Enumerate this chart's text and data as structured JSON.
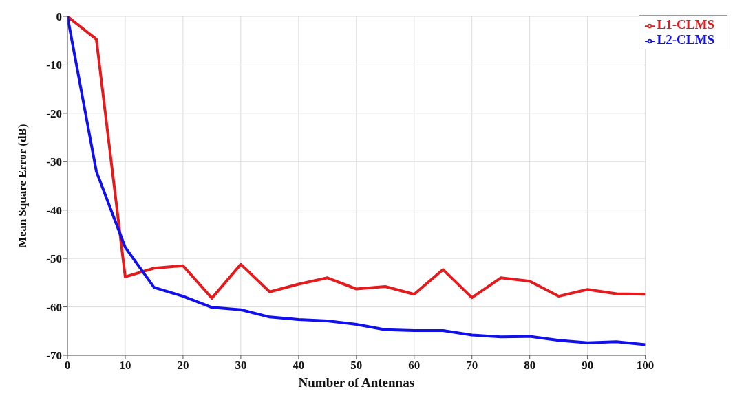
{
  "chart_data": {
    "type": "line",
    "xlabel": "Number of Antennas",
    "ylabel": "Mean Square Error (dB)",
    "x": [
      0,
      5,
      10,
      15,
      20,
      25,
      30,
      35,
      40,
      45,
      50,
      55,
      60,
      65,
      70,
      75,
      80,
      85,
      90,
      95,
      100
    ],
    "series": [
      {
        "name": "L1-CLMS",
        "color": "#e41a1c",
        "values": [
          0,
          -4.7,
          -53.8,
          -52,
          -51.5,
          -58.2,
          -51.2,
          -56.9,
          -55.3,
          -54,
          -56.3,
          -55.8,
          -57.4,
          -52.3,
          -58.1,
          -54,
          -54.7,
          -57.8,
          -56.4,
          -57.3,
          -57.4
        ]
      },
      {
        "name": "L2-CLMS",
        "color": "#1010ee",
        "values": [
          0,
          -32,
          -47.7,
          -56,
          -57.8,
          -60.1,
          -60.6,
          -62.1,
          -62.6,
          -62.9,
          -63.6,
          -64.7,
          -64.9,
          -64.9,
          -65.8,
          -66.2,
          -66.1,
          -66.9,
          -67.4,
          -67.2,
          -67.8
        ]
      }
    ],
    "xlim": [
      0,
      100
    ],
    "xticks": [
      0,
      10,
      20,
      30,
      40,
      50,
      60,
      70,
      80,
      90,
      100
    ],
    "ylim": [
      -70,
      0
    ],
    "yticks": [
      -70,
      -60,
      -50,
      -40,
      -30,
      -20,
      -10,
      0
    ],
    "grid": true,
    "legend": "top right",
    "marker": "none",
    "line_style": "solid"
  }
}
